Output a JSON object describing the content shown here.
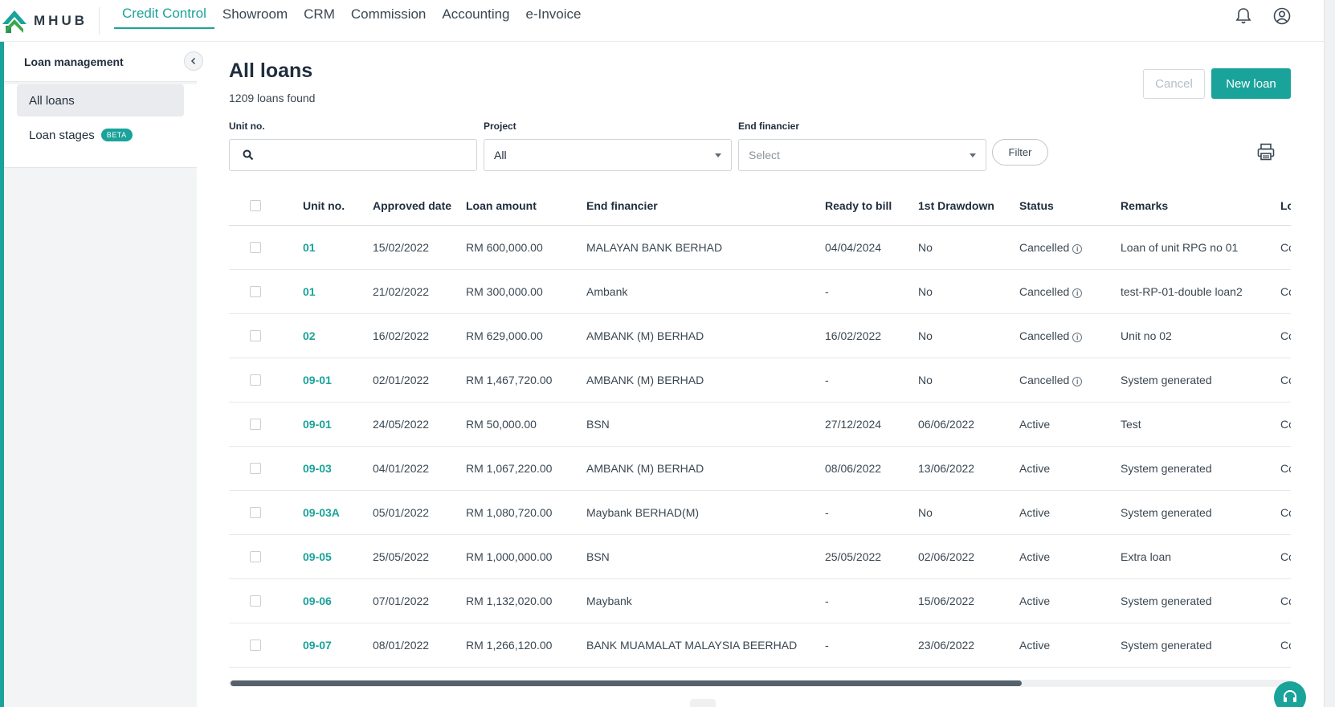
{
  "app": {
    "logo_text": "MHUB",
    "nav": [
      {
        "label": "Credit Control",
        "active": true
      },
      {
        "label": "Showroom"
      },
      {
        "label": "CRM"
      },
      {
        "label": "Commission"
      },
      {
        "label": "Accounting"
      },
      {
        "label": "e-Invoice"
      }
    ],
    "icons": {
      "notifications": "bell-icon",
      "account": "user-circle-icon"
    },
    "accent_color": "#1aa39a"
  },
  "sidebar": {
    "title": "Loan management",
    "items": [
      {
        "label": "All loans",
        "active": true
      },
      {
        "label": "Loan stages",
        "badge": "BETA"
      }
    ]
  },
  "main": {
    "title": "All loans",
    "count_text": "1209 loans found",
    "cancel_label": "Cancel",
    "new_loan_label": "New loan",
    "filters": {
      "unit_label": "Unit no.",
      "unit_value": "",
      "project_label": "Project",
      "project_value": "All",
      "financier_label": "End financier",
      "financier_placeholder": "Select",
      "filter_button": "Filter"
    },
    "table": {
      "headers": [
        "Unit no.",
        "Approved date",
        "Loan amount",
        "End financier",
        "Ready to bill",
        "1st Drawdown",
        "Status",
        "Remarks",
        "Loa"
      ],
      "rows": [
        {
          "unit": "01",
          "approved": "15/02/2022",
          "amount": "RM 600,000.00",
          "financier": "MALAYAN BANK BERHAD",
          "ready": "04/04/2024",
          "drawdown": "No",
          "status": "Cancelled",
          "remarks": "Loan of unit RPG no 01",
          "extra": "Cor"
        },
        {
          "unit": "01",
          "approved": "21/02/2022",
          "amount": "RM 300,000.00",
          "financier": "Ambank",
          "ready": "-",
          "drawdown": "No",
          "status": "Cancelled",
          "remarks": "test-RP-01-double loan2",
          "extra": "Cor"
        },
        {
          "unit": "02",
          "approved": "16/02/2022",
          "amount": "RM 629,000.00",
          "financier": "AMBANK (M) BERHAD",
          "ready": "16/02/2022",
          "drawdown": "No",
          "status": "Cancelled",
          "remarks": "Unit no 02",
          "extra": "Cor"
        },
        {
          "unit": "09-01",
          "approved": "02/01/2022",
          "amount": "RM 1,467,720.00",
          "financier": "AMBANK (M) BERHAD",
          "ready": "-",
          "drawdown": "No",
          "status": "Cancelled",
          "remarks": "System generated",
          "extra": "Cor"
        },
        {
          "unit": "09-01",
          "approved": "24/05/2022",
          "amount": "RM 50,000.00",
          "financier": "BSN",
          "ready": "27/12/2024",
          "drawdown": "06/06/2022",
          "status": "Active",
          "remarks": "Test",
          "extra": "Cor"
        },
        {
          "unit": "09-03",
          "approved": "04/01/2022",
          "amount": "RM 1,067,220.00",
          "financier": "AMBANK (M) BERHAD",
          "ready": "08/06/2022",
          "drawdown": "13/06/2022",
          "status": "Active",
          "remarks": "System generated",
          "extra": "Cor"
        },
        {
          "unit": "09-03A",
          "approved": "05/01/2022",
          "amount": "RM 1,080,720.00",
          "financier": "Maybank BERHAD(M)",
          "ready": "-",
          "drawdown": "No",
          "status": "Active",
          "remarks": "System generated",
          "extra": "Cor"
        },
        {
          "unit": "09-05",
          "approved": "25/05/2022",
          "amount": "RM 1,000,000.00",
          "financier": "BSN",
          "ready": "25/05/2022",
          "drawdown": "02/06/2022",
          "status": "Active",
          "remarks": "Extra loan",
          "extra": "Cor"
        },
        {
          "unit": "09-06",
          "approved": "07/01/2022",
          "amount": "RM 1,132,020.00",
          "financier": "Maybank",
          "ready": "-",
          "drawdown": "15/06/2022",
          "status": "Active",
          "remarks": "System generated",
          "extra": "Cor"
        },
        {
          "unit": "09-07",
          "approved": "08/01/2022",
          "amount": "RM 1,266,120.00",
          "financier": "BANK MUAMALAT MALAYSIA BEERHAD",
          "ready": "-",
          "drawdown": "23/06/2022",
          "status": "Active",
          "remarks": "System generated",
          "extra": "Cor"
        }
      ]
    }
  }
}
